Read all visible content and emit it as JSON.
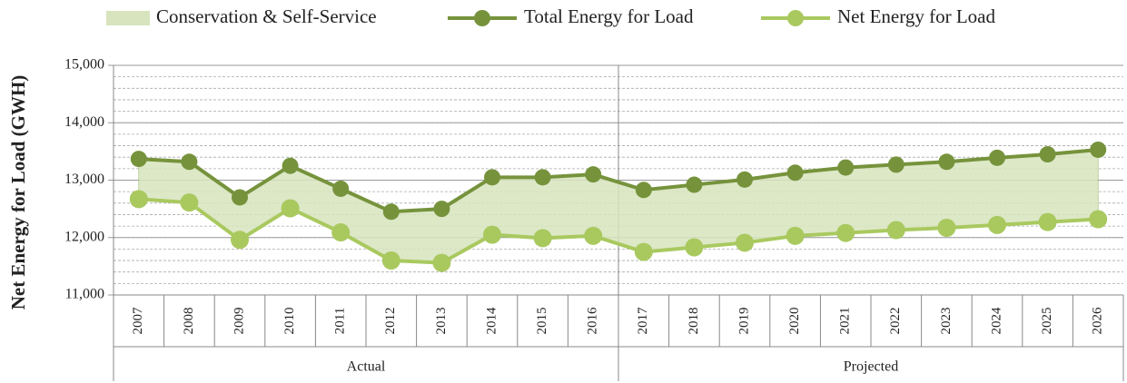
{
  "chart_data": {
    "type": "line",
    "ylabel": "Net Energy for Load (GWH)",
    "categories": [
      "2007",
      "2008",
      "2009",
      "2010",
      "2011",
      "2012",
      "2013",
      "2014",
      "2015",
      "2016",
      "2017",
      "2018",
      "2019",
      "2020",
      "2021",
      "2022",
      "2023",
      "2024",
      "2025",
      "2026"
    ],
    "groups": [
      {
        "label": "Actual",
        "from": "2007",
        "to": "2016"
      },
      {
        "label": "Projected",
        "from": "2017",
        "to": "2026"
      }
    ],
    "series": [
      {
        "name": "Conservation & Self-Service",
        "kind": "area",
        "stacked_on": 2,
        "color": "#d7e4bd",
        "values": [
          700,
          710,
          740,
          740,
          760,
          850,
          940,
          1000,
          1060,
          1070,
          1080,
          1090,
          1100,
          1100,
          1140,
          1140,
          1150,
          1170,
          1180,
          1210
        ]
      },
      {
        "name": "Total Energy for Load",
        "kind": "line",
        "color": "#76933c",
        "values": [
          13370,
          13320,
          12700,
          13250,
          12850,
          12450,
          12500,
          13050,
          13050,
          13100,
          12830,
          12920,
          13010,
          13130,
          13220,
          13270,
          13320,
          13390,
          13450,
          13530
        ]
      },
      {
        "name": "Net Energy for Load",
        "kind": "line",
        "color": "#a9c95f",
        "values": [
          12670,
          12610,
          11960,
          12510,
          12090,
          11600,
          11560,
          12050,
          11990,
          12030,
          11750,
          11830,
          11910,
          12030,
          12080,
          12130,
          12170,
          12220,
          12270,
          12320
        ]
      }
    ],
    "ylim": [
      11000,
      15000
    ],
    "yticks": [
      {
        "value": 11000,
        "label": "11,000"
      },
      {
        "value": 12000,
        "label": "12,000"
      },
      {
        "value": 13000,
        "label": "13,000"
      },
      {
        "value": 14000,
        "label": "14,000"
      },
      {
        "value": 15000,
        "label": "15,000"
      }
    ],
    "grid": true,
    "minor_grid": 200,
    "legend": "top"
  }
}
